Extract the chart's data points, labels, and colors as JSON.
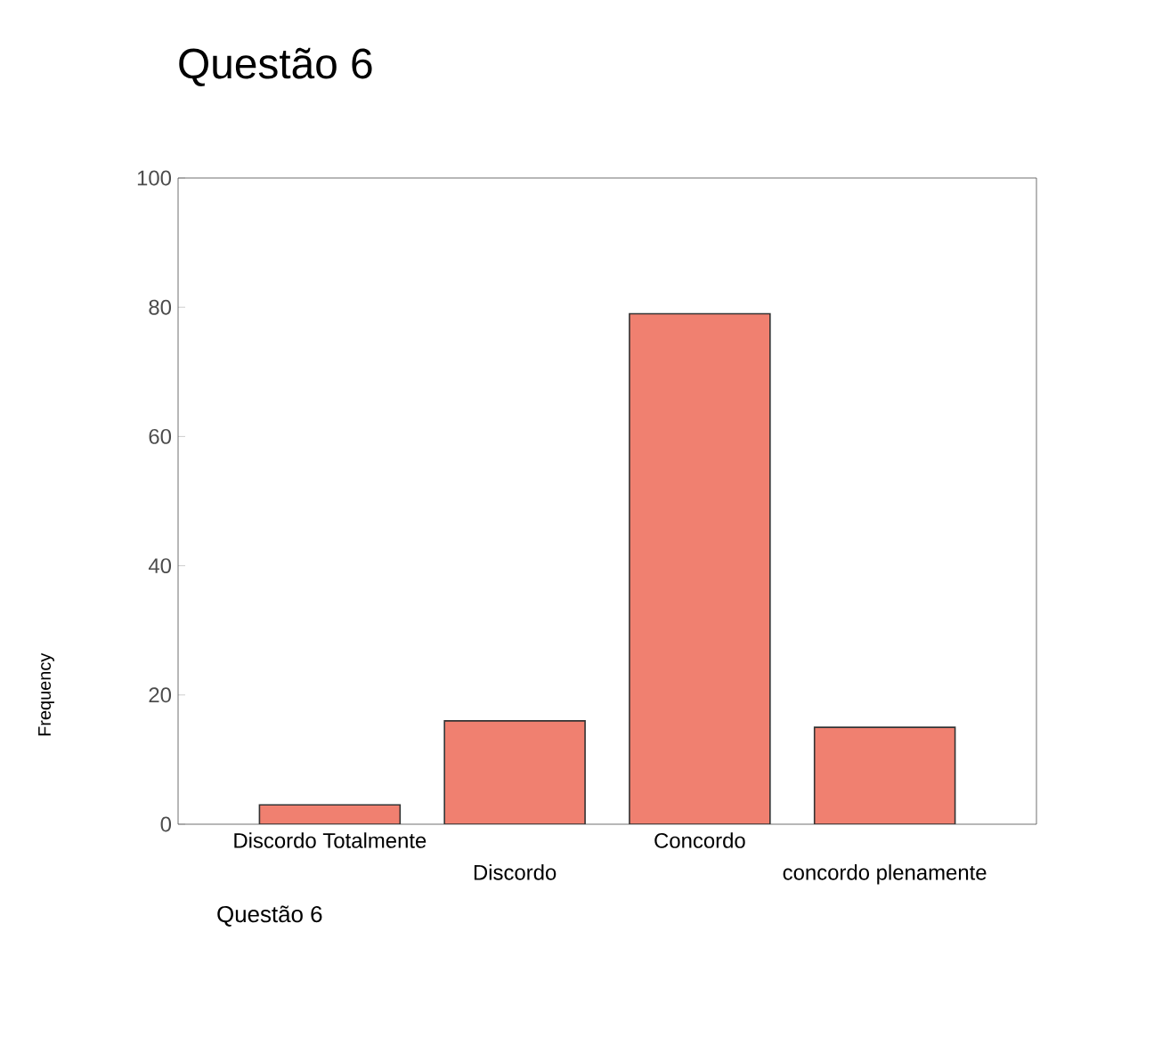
{
  "chart_data": {
    "type": "bar",
    "title": "Questão 6",
    "ylabel": "Frequency",
    "annotations": [
      "Questão 6"
    ],
    "categories": [
      "Discordo Totalmente",
      "Discordo",
      "Concordo",
      "concordo plenamente"
    ],
    "values": [
      3,
      16,
      79,
      15
    ],
    "color": "#f08070",
    "ylim": [
      0,
      100
    ],
    "yticks": [
      0,
      20,
      40,
      60,
      80,
      100
    ],
    "grid": false
  }
}
